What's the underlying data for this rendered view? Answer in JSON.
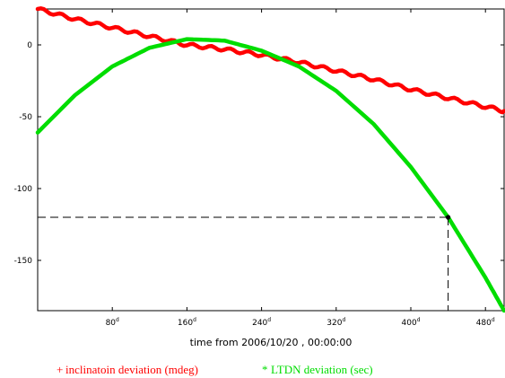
{
  "chart_data": {
    "type": "line",
    "title": "",
    "xlabel": "time from 2006/10/20 , 00:00:00",
    "ylabel": "",
    "x_unit": "d",
    "xlim": [
      0,
      500
    ],
    "ylim": [
      -185,
      25
    ],
    "x_ticks": [
      80,
      160,
      240,
      320,
      400,
      480
    ],
    "y_ticks": [
      0,
      -50,
      -100,
      -150
    ],
    "grid": false,
    "legend_position": "bottom",
    "series": [
      {
        "name": "inclinatoin deviation (mdeg)",
        "legend_symbol": "+",
        "color": "#ff0000",
        "x": [
          0,
          40,
          80,
          120,
          160,
          200,
          240,
          280,
          320,
          360,
          400,
          440,
          480,
          500
        ],
        "y": [
          25,
          18,
          12,
          6,
          0,
          -3,
          -7,
          -12,
          -18,
          -24,
          -31,
          -37,
          -43,
          -46
        ]
      },
      {
        "name": "LTDN deviation (sec)",
        "legend_symbol": "*",
        "color": "#00dd00",
        "x": [
          0,
          40,
          80,
          120,
          160,
          200,
          240,
          280,
          320,
          360,
          400,
          440,
          480,
          500
        ],
        "y": [
          -61,
          -35,
          -15,
          -2,
          4,
          3,
          -4,
          -15,
          -32,
          -55,
          -85,
          -120,
          -162,
          -185
        ]
      }
    ],
    "annotation": {
      "x": 440,
      "y": -120,
      "style": "dashed-crosshair",
      "marker_color": "#000000"
    }
  }
}
